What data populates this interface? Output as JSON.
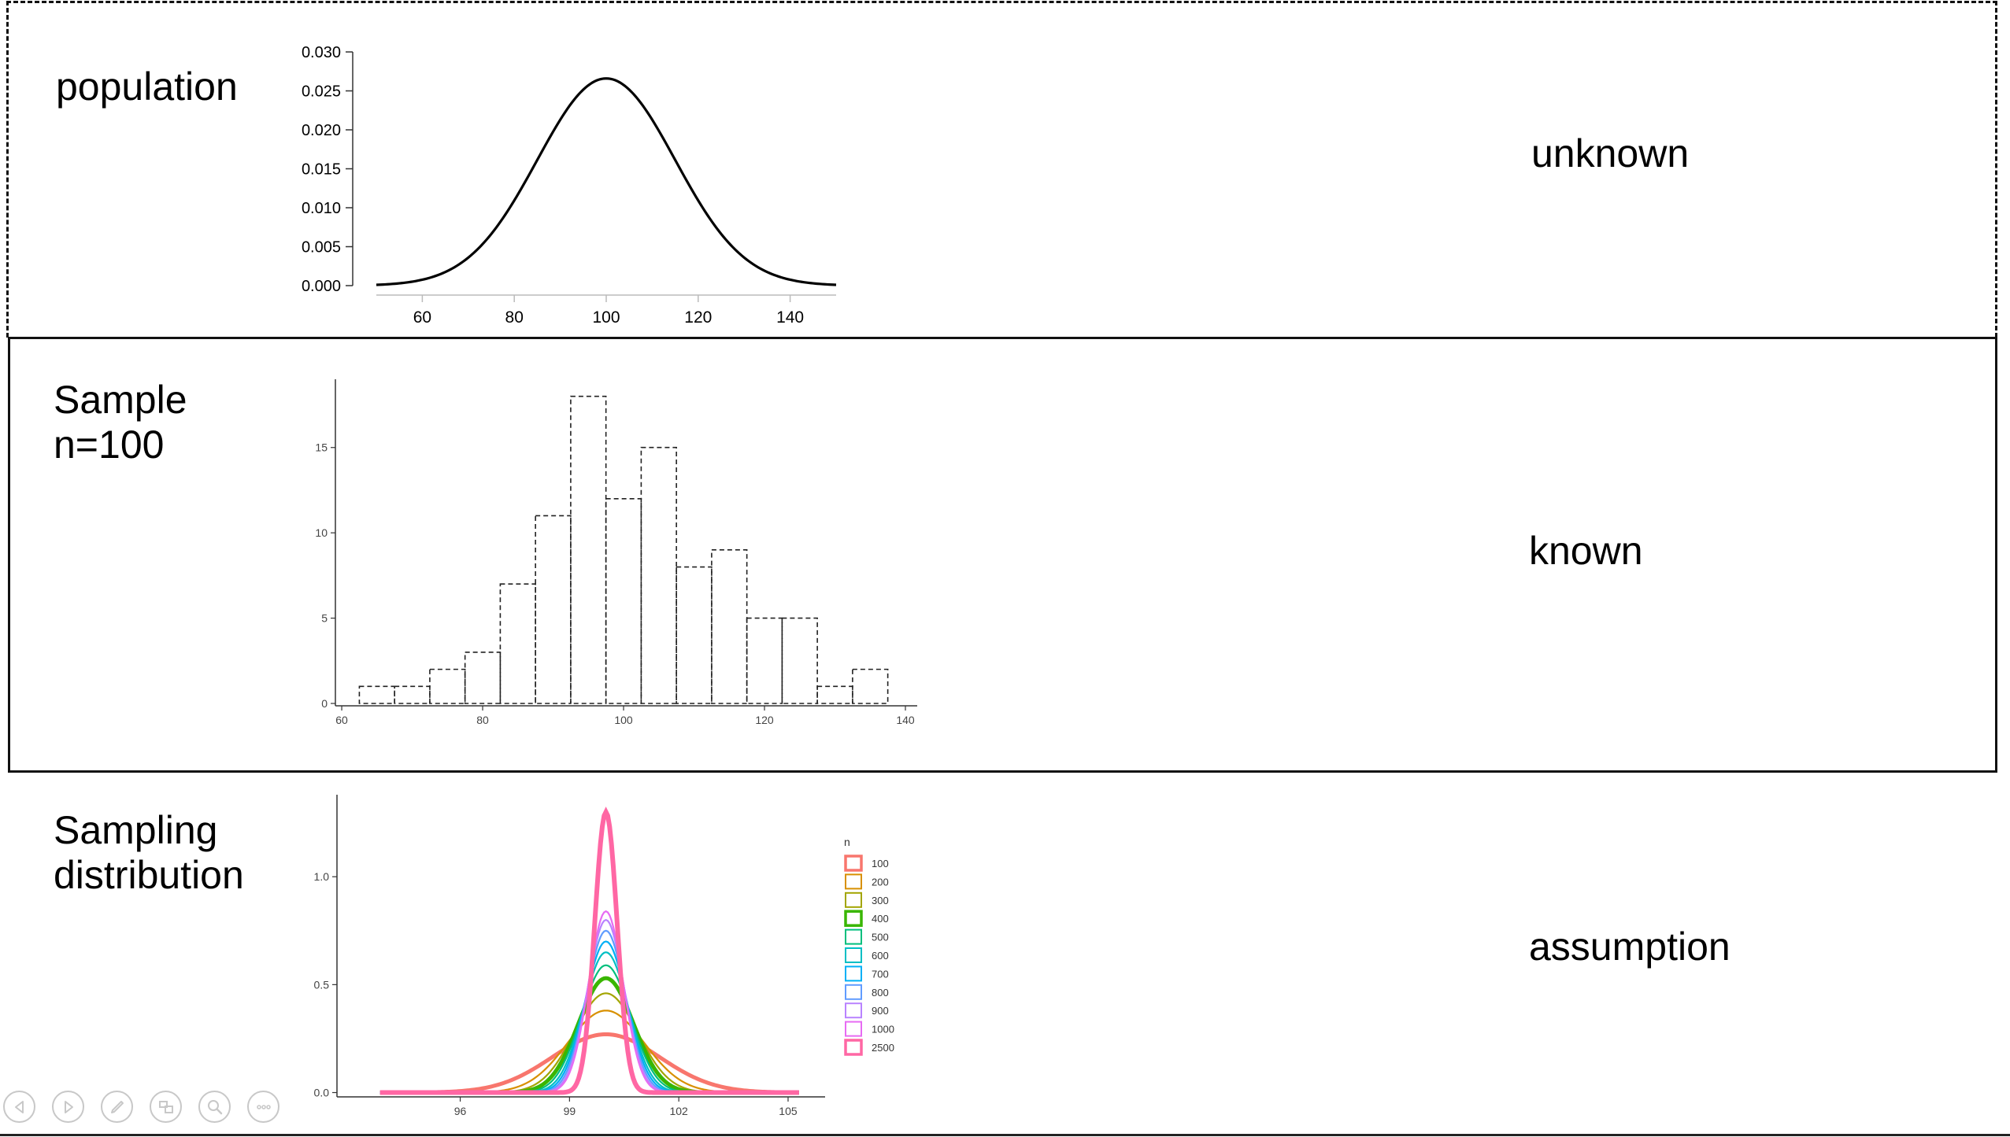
{
  "rows": [
    {
      "label": "population",
      "status": "unknown"
    },
    {
      "label": "Sample\nn=100",
      "status": "known"
    },
    {
      "label": "Sampling\ndistribution",
      "status": "assumption"
    }
  ],
  "controls": [
    {
      "name": "previous-slide-button",
      "icon": "triangle-left-icon"
    },
    {
      "name": "next-slide-button",
      "icon": "triangle-right-icon"
    },
    {
      "name": "pen-tool-button",
      "icon": "pen-icon"
    },
    {
      "name": "slide-overview-button",
      "icon": "slides-grid-icon"
    },
    {
      "name": "zoom-button",
      "icon": "magnifier-icon"
    },
    {
      "name": "more-options-button",
      "icon": "ellipsis-icon"
    }
  ],
  "chart_data": [
    {
      "type": "line",
      "title": "",
      "xlabel": "",
      "ylabel": "",
      "xlim": [
        50,
        150
      ],
      "ylim": [
        0,
        0.03
      ],
      "x_ticks": [
        "60",
        "80",
        "100",
        "120",
        "140"
      ],
      "y_ticks": [
        "0.000",
        "0.005",
        "0.010",
        "0.015",
        "0.020",
        "0.025",
        "0.030"
      ],
      "series": [
        {
          "distribution": "normal",
          "mean": 100,
          "sd": 15,
          "x": [
            50,
            60,
            70,
            80,
            90,
            100,
            110,
            120,
            130,
            140,
            150
          ],
          "y": [
            0.0001,
            0.0005,
            0.0036,
            0.0109,
            0.0213,
            0.0266,
            0.0213,
            0.0109,
            0.0036,
            0.0005,
            0.0001
          ]
        }
      ],
      "grid": false,
      "line_color": "#000000"
    },
    {
      "type": "bar",
      "title": "",
      "xlabel": "",
      "ylabel": "",
      "bin_width": 5,
      "bin_starts": [
        62.5,
        67.5,
        72.5,
        77.5,
        82.5,
        87.5,
        92.5,
        97.5,
        102.5,
        107.5,
        112.5,
        117.5,
        122.5,
        127.5,
        132.5
      ],
      "values": [
        1,
        1,
        2,
        3,
        7,
        11,
        18,
        12,
        15,
        8,
        9,
        5,
        5,
        1,
        2
      ],
      "xlim": [
        61,
        140
      ],
      "ylim": [
        0,
        19
      ],
      "x_ticks": [
        "60",
        "80",
        "100",
        "120",
        "140"
      ],
      "y_ticks": [
        "0",
        "5",
        "10",
        "15"
      ],
      "grid": false,
      "bar_style": "dashed outline"
    },
    {
      "type": "line",
      "title": "",
      "xlabel": "",
      "ylabel": "",
      "xlim": [
        93.2,
        105.8
      ],
      "ylim": [
        -0.02,
        1.38
      ],
      "x_ticks": [
        "96",
        "99",
        "102",
        "105"
      ],
      "y_ticks": [
        "0.0",
        "0.5",
        "1.0"
      ],
      "center": 100,
      "legend_title": "n",
      "legend_position": "right",
      "series": [
        {
          "name": "100",
          "peak": 0.27,
          "color": "#F8766D"
        },
        {
          "name": "200",
          "peak": 0.38,
          "color": "#D89000"
        },
        {
          "name": "300",
          "peak": 0.46,
          "color": "#A3A500"
        },
        {
          "name": "400",
          "peak": 0.53,
          "color": "#39B600"
        },
        {
          "name": "500",
          "peak": 0.59,
          "color": "#00BF7D"
        },
        {
          "name": "600",
          "peak": 0.65,
          "color": "#00BFC4"
        },
        {
          "name": "700",
          "peak": 0.7,
          "color": "#00B0F6"
        },
        {
          "name": "800",
          "peak": 0.75,
          "color": "#619CFF"
        },
        {
          "name": "900",
          "peak": 0.8,
          "color": "#B983FF"
        },
        {
          "name": "1000",
          "peak": 0.84,
          "color": "#E76BF3"
        },
        {
          "name": "2500",
          "peak": 1.3,
          "color": "#FF67A4"
        }
      ],
      "grid": false
    }
  ]
}
